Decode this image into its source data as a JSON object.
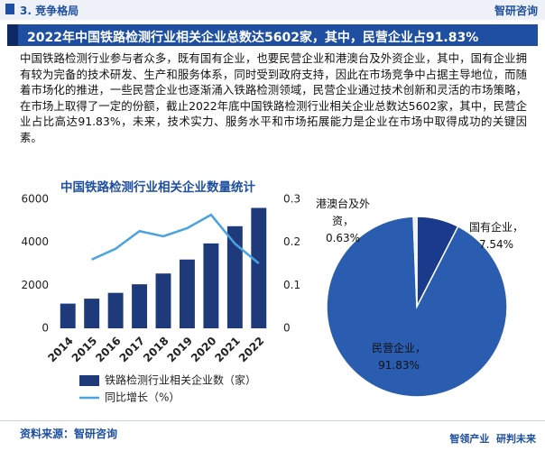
{
  "header": {
    "section": "3. 竞争格局",
    "brand": "智研咨询",
    "title": "2022年中国铁路检测行业相关企业总数达5602家，其中，民营企业占91.83%"
  },
  "paragraph": "中国铁路检测行业参与者众多，既有国有企业，也要民营企业和港澳台及外资企业，其中，国有企业拥有较为完备的技术研发、生产和服务体系，同时受到政府支持，因此在市场竞争中占据主导地位，而随着市场化的推进，一些民营企业也逐渐涌入铁路检测领域，民营企业通过技术创新和灵活的市场策略，在市场上取得了一定的份额，截止2022年底中国铁路检测行业相关企业总数达5602家，其中，民营企业占比高达91.83%，未来，技术实力、服务水平和市场拓展能力是企业在市场中取得成功的关键因素。",
  "chart_data": [
    {
      "type": "bar",
      "title": "中国铁路检测行业相关企业数量统计",
      "categories": [
        "2014",
        "2015",
        "2016",
        "2017",
        "2018",
        "2019",
        "2020",
        "2021",
        "2022"
      ],
      "series": [
        {
          "name": "铁路检测行业相关企业数（家）",
          "color": "#1f3a7a",
          "type": "bar",
          "values": [
            1150,
            1380,
            1650,
            2050,
            2550,
            3200,
            3950,
            4750,
            5602
          ]
        },
        {
          "name": "同比增长（%）",
          "color": "#4aa3df",
          "type": "line",
          "axis": "y2",
          "values": [
            null,
            0.16,
            0.185,
            0.226,
            0.214,
            0.233,
            0.264,
            0.197,
            0.151
          ]
        }
      ],
      "ylim": [
        0,
        6000
      ],
      "yticks": [
        0,
        2000,
        4000,
        6000
      ],
      "y2lim": [
        0,
        0.3
      ],
      "y2ticks": [
        0,
        0.1,
        0.2,
        0.3
      ]
    },
    {
      "type": "pie",
      "categories": [
        "国有企业，",
        "民营企业，",
        "港澳台及外资，"
      ],
      "values": [
        7.54,
        91.83,
        0.63
      ],
      "value_labels": [
        "7.54%",
        "91.83%",
        "0.63%"
      ],
      "colors": [
        "#1a3a8c",
        "#2a5db0",
        "#e8edf5"
      ]
    }
  ],
  "source": "资料来源：智研咨询",
  "footer": "智领产业  研判未来"
}
